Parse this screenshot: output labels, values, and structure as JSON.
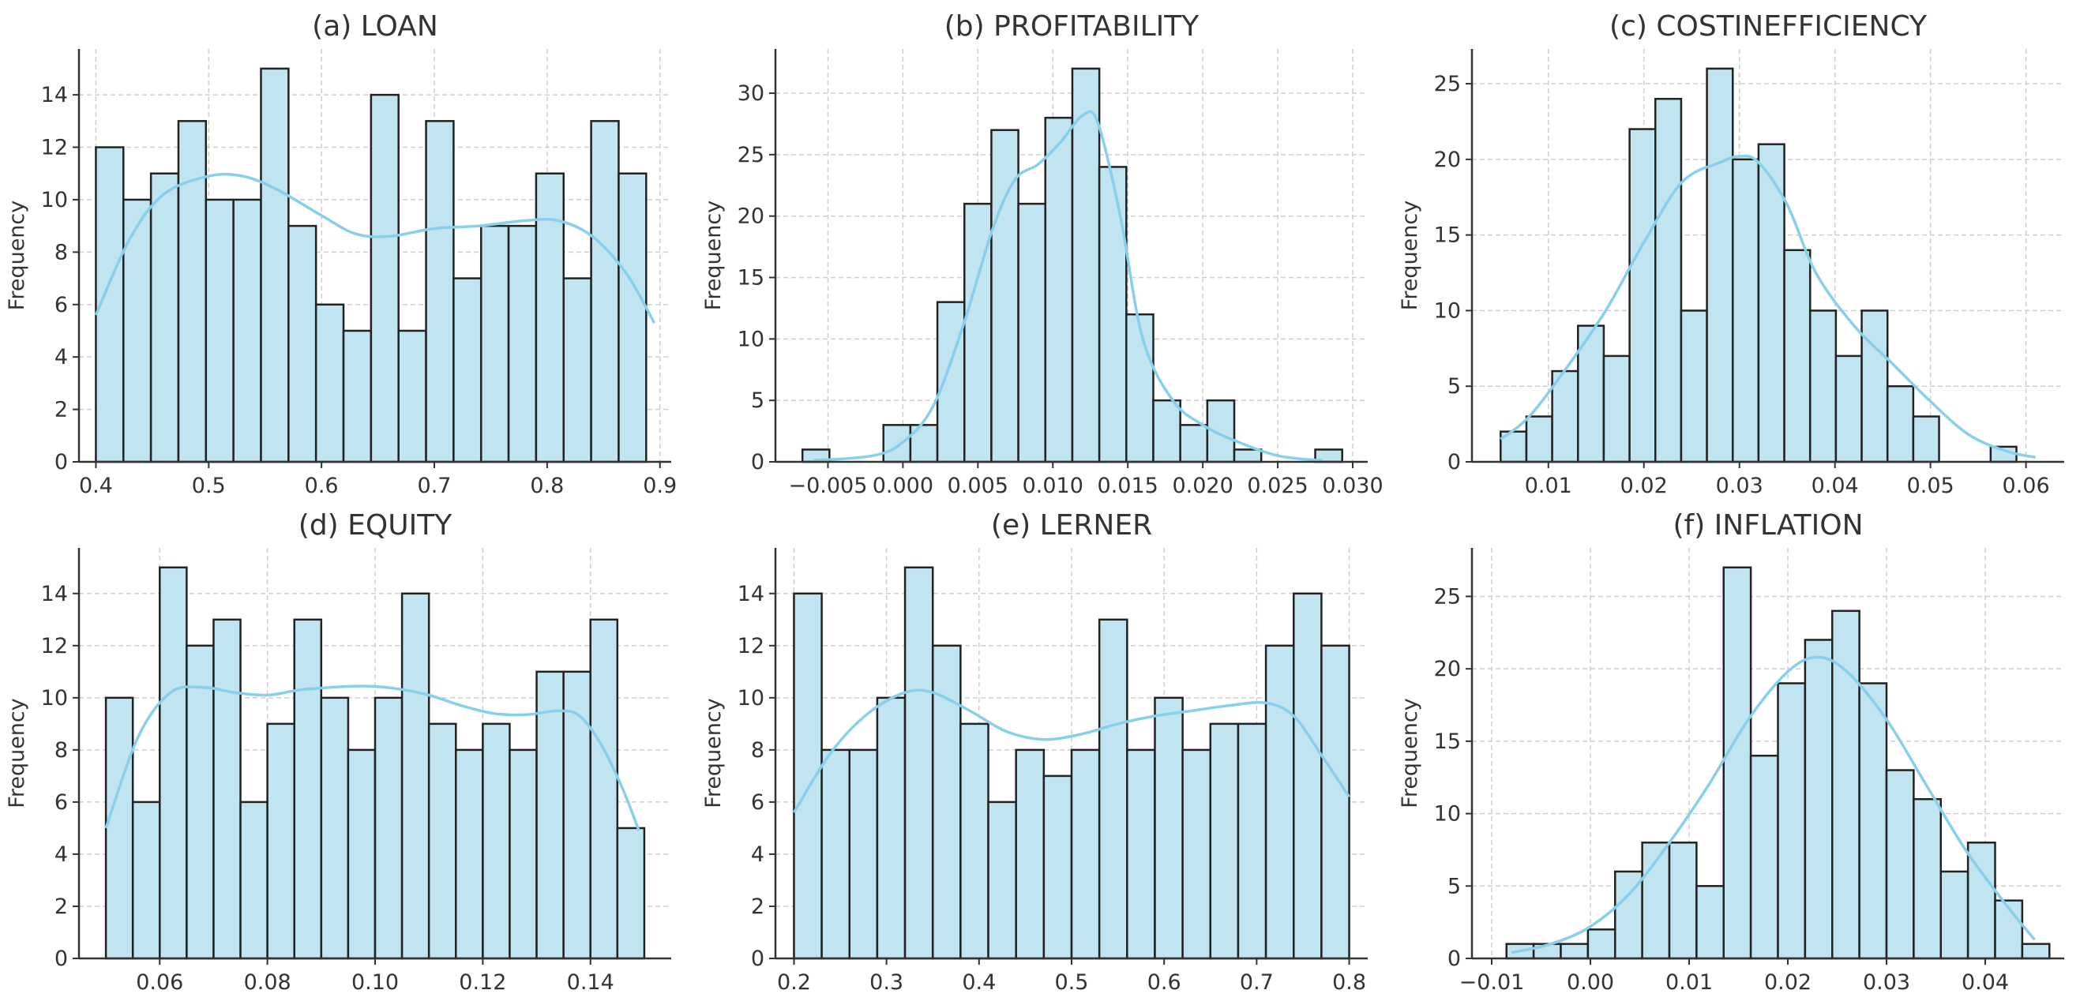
{
  "chart_data": [
    {
      "type": "histogram",
      "title": "(a) LOAN",
      "xlabel": "",
      "ylabel": "Frequency",
      "bin_start": 0.4,
      "bin_width": 0.02439,
      "values": [
        12,
        10,
        11,
        13,
        10,
        10,
        15,
        9,
        6,
        5,
        14,
        5,
        13,
        7,
        9,
        9,
        11,
        7,
        13,
        11
      ],
      "xlim": [
        0.385,
        0.91
      ],
      "ylim": [
        0,
        15.75
      ],
      "xticks": [
        0.4,
        0.5,
        0.6,
        0.7,
        0.8,
        0.9
      ],
      "xtick_labels": [
        "0.4",
        "0.5",
        "0.6",
        "0.7",
        "0.8",
        "0.9"
      ],
      "yticks": [
        0,
        2,
        4,
        6,
        8,
        10,
        12,
        14
      ],
      "ytick_labels": [
        "0",
        "2",
        "4",
        "6",
        "8",
        "10",
        "12",
        "14"
      ],
      "kde": [
        [
          0.4,
          5.6
        ],
        [
          0.43,
          8.5
        ],
        [
          0.46,
          10.2
        ],
        [
          0.5,
          10.9
        ],
        [
          0.53,
          10.9
        ],
        [
          0.56,
          10.4
        ],
        [
          0.6,
          9.4
        ],
        [
          0.63,
          8.7
        ],
        [
          0.66,
          8.6
        ],
        [
          0.7,
          8.9
        ],
        [
          0.74,
          9.0
        ],
        [
          0.78,
          9.2
        ],
        [
          0.81,
          9.2
        ],
        [
          0.84,
          8.6
        ],
        [
          0.87,
          7.2
        ],
        [
          0.895,
          5.3
        ]
      ]
    },
    {
      "type": "histogram",
      "title": "(b) PROFITABILITY",
      "xlabel": "",
      "ylabel": "Frequency",
      "bin_start": -0.0067,
      "bin_width": 0.0018,
      "values": [
        1,
        0,
        0,
        3,
        3,
        13,
        21,
        27,
        21,
        28,
        32,
        24,
        12,
        5,
        3,
        5,
        1,
        0,
        0,
        1
      ],
      "xlim": [
        -0.0085,
        0.031
      ],
      "ylim": [
        0,
        33.6
      ],
      "xticks": [
        -0.005,
        0.0,
        0.005,
        0.01,
        0.015,
        0.02,
        0.025,
        0.03
      ],
      "xtick_labels": [
        "−0.005",
        "0.000",
        "0.005",
        "0.010",
        "0.015",
        "0.020",
        "0.025",
        "0.030"
      ],
      "yticks": [
        0,
        5,
        10,
        15,
        20,
        25,
        30
      ],
      "ytick_labels": [
        "0",
        "5",
        "10",
        "15",
        "20",
        "25",
        "30"
      ],
      "kde": [
        [
          -0.006,
          0.1
        ],
        [
          -0.002,
          0.5
        ],
        [
          0.0,
          1.6
        ],
        [
          0.002,
          4.5
        ],
        [
          0.004,
          11
        ],
        [
          0.006,
          19
        ],
        [
          0.0075,
          23
        ],
        [
          0.009,
          24.2
        ],
        [
          0.0105,
          26
        ],
        [
          0.012,
          28.2
        ],
        [
          0.013,
          27.6
        ],
        [
          0.0145,
          20
        ],
        [
          0.016,
          10
        ],
        [
          0.018,
          5
        ],
        [
          0.02,
          3
        ],
        [
          0.022,
          1.8
        ],
        [
          0.025,
          0.5
        ],
        [
          0.028,
          0.1
        ]
      ]
    },
    {
      "type": "histogram",
      "title": "(c) COSTINEFFICIENCY",
      "xlabel": "",
      "ylabel": "Frequency",
      "bin_start": 0.005,
      "bin_width": 0.0027,
      "values": [
        2,
        3,
        6,
        9,
        7,
        22,
        24,
        10,
        26,
        20,
        21,
        14,
        10,
        7,
        10,
        5,
        3,
        0,
        0,
        1
      ],
      "xlim": [
        0.002,
        0.064
      ],
      "ylim": [
        0,
        27.3
      ],
      "xticks": [
        0.01,
        0.02,
        0.03,
        0.04,
        0.05,
        0.06
      ],
      "xtick_labels": [
        "0.01",
        "0.02",
        "0.03",
        "0.04",
        "0.05",
        "0.06"
      ],
      "yticks": [
        0,
        5,
        10,
        15,
        20,
        25
      ],
      "ytick_labels": [
        "0",
        "5",
        "10",
        "15",
        "20",
        "25"
      ],
      "kde": [
        [
          0.005,
          1.5
        ],
        [
          0.008,
          3
        ],
        [
          0.012,
          6.3
        ],
        [
          0.016,
          10
        ],
        [
          0.02,
          14.5
        ],
        [
          0.024,
          18.5
        ],
        [
          0.028,
          19.8
        ],
        [
          0.03,
          20.2
        ],
        [
          0.032,
          19.8
        ],
        [
          0.035,
          17
        ],
        [
          0.038,
          12.5
        ],
        [
          0.042,
          9
        ],
        [
          0.046,
          6.5
        ],
        [
          0.05,
          4
        ],
        [
          0.054,
          1.8
        ],
        [
          0.058,
          0.7
        ],
        [
          0.061,
          0.3
        ]
      ]
    },
    {
      "type": "histogram",
      "title": "(d) EQUITY",
      "xlabel": "",
      "ylabel": "Frequency",
      "bin_start": 0.05,
      "bin_width": 0.005,
      "values": [
        10,
        6,
        15,
        12,
        13,
        6,
        9,
        13,
        10,
        8,
        10,
        14,
        9,
        8,
        9,
        8,
        11,
        11,
        13,
        5
      ],
      "xlim": [
        0.045,
        0.155
      ],
      "ylim": [
        0,
        15.75
      ],
      "xticks": [
        0.06,
        0.08,
        0.1,
        0.12,
        0.14
      ],
      "xtick_labels": [
        "0.06",
        "0.08",
        "0.10",
        "0.12",
        "0.14"
      ],
      "yticks": [
        0,
        2,
        4,
        6,
        8,
        10,
        12,
        14
      ],
      "ytick_labels": [
        "0",
        "2",
        "4",
        "6",
        "8",
        "10",
        "12",
        "14"
      ],
      "kde": [
        [
          0.05,
          5.0
        ],
        [
          0.056,
          8.5
        ],
        [
          0.062,
          10.2
        ],
        [
          0.068,
          10.4
        ],
        [
          0.074,
          10.2
        ],
        [
          0.08,
          10.1
        ],
        [
          0.086,
          10.3
        ],
        [
          0.092,
          10.4
        ],
        [
          0.098,
          10.45
        ],
        [
          0.104,
          10.35
        ],
        [
          0.11,
          10.1
        ],
        [
          0.116,
          9.7
        ],
        [
          0.122,
          9.4
        ],
        [
          0.128,
          9.35
        ],
        [
          0.134,
          9.5
        ],
        [
          0.138,
          9.3
        ],
        [
          0.142,
          8.2
        ],
        [
          0.146,
          6.5
        ],
        [
          0.149,
          4.9
        ]
      ]
    },
    {
      "type": "histogram",
      "title": "(e) LERNER",
      "xlabel": "",
      "ylabel": "Frequency",
      "bin_start": 0.2,
      "bin_width": 0.03,
      "values": [
        14,
        8,
        8,
        10,
        15,
        12,
        9,
        6,
        8,
        7,
        8,
        13,
        8,
        10,
        8,
        9,
        9,
        12,
        14,
        12
      ],
      "xlim": [
        0.18,
        0.82
      ],
      "ylim": [
        0,
        15.75
      ],
      "xticks": [
        0.2,
        0.3,
        0.4,
        0.5,
        0.6,
        0.7,
        0.8
      ],
      "xtick_labels": [
        "0.2",
        "0.3",
        "0.4",
        "0.5",
        "0.6",
        "0.7",
        "0.8"
      ],
      "yticks": [
        0,
        2,
        4,
        6,
        8,
        10,
        12,
        14
      ],
      "ytick_labels": [
        "0",
        "2",
        "4",
        "6",
        "8",
        "10",
        "12",
        "14"
      ],
      "kde": [
        [
          0.2,
          5.6
        ],
        [
          0.24,
          7.9
        ],
        [
          0.28,
          9.4
        ],
        [
          0.32,
          10.2
        ],
        [
          0.35,
          10.2
        ],
        [
          0.39,
          9.5
        ],
        [
          0.43,
          8.7
        ],
        [
          0.47,
          8.4
        ],
        [
          0.51,
          8.6
        ],
        [
          0.55,
          9.0
        ],
        [
          0.59,
          9.3
        ],
        [
          0.63,
          9.5
        ],
        [
          0.67,
          9.7
        ],
        [
          0.71,
          9.8
        ],
        [
          0.74,
          9.3
        ],
        [
          0.77,
          7.8
        ],
        [
          0.8,
          6.2
        ]
      ]
    },
    {
      "type": "histogram",
      "title": "(f) INFLATION",
      "xlabel": "",
      "ylabel": "Frequency",
      "bin_start": -0.0085,
      "bin_width": 0.00275,
      "values": [
        1,
        1,
        1,
        2,
        6,
        8,
        8,
        5,
        27,
        14,
        19,
        22,
        24,
        19,
        13,
        11,
        6,
        8,
        4,
        1
      ],
      "xlim": [
        -0.012,
        0.048
      ],
      "ylim": [
        0,
        28.35
      ],
      "xticks": [
        -0.01,
        0.0,
        0.01,
        0.02,
        0.03,
        0.04
      ],
      "xtick_labels": [
        "−0.01",
        "0.00",
        "0.01",
        "0.02",
        "0.03",
        "0.04"
      ],
      "yticks": [
        0,
        5,
        10,
        15,
        20,
        25
      ],
      "ytick_labels": [
        "0",
        "5",
        "10",
        "15",
        "20",
        "25"
      ],
      "kde": [
        [
          -0.008,
          0.4
        ],
        [
          -0.004,
          1.0
        ],
        [
          0.0,
          2.2
        ],
        [
          0.004,
          4.5
        ],
        [
          0.008,
          8
        ],
        [
          0.012,
          12
        ],
        [
          0.016,
          16.5
        ],
        [
          0.02,
          19.8
        ],
        [
          0.023,
          20.8
        ],
        [
          0.026,
          19.8
        ],
        [
          0.03,
          16.5
        ],
        [
          0.034,
          12
        ],
        [
          0.038,
          7.5
        ],
        [
          0.042,
          3.8
        ],
        [
          0.045,
          1.3
        ]
      ]
    }
  ]
}
